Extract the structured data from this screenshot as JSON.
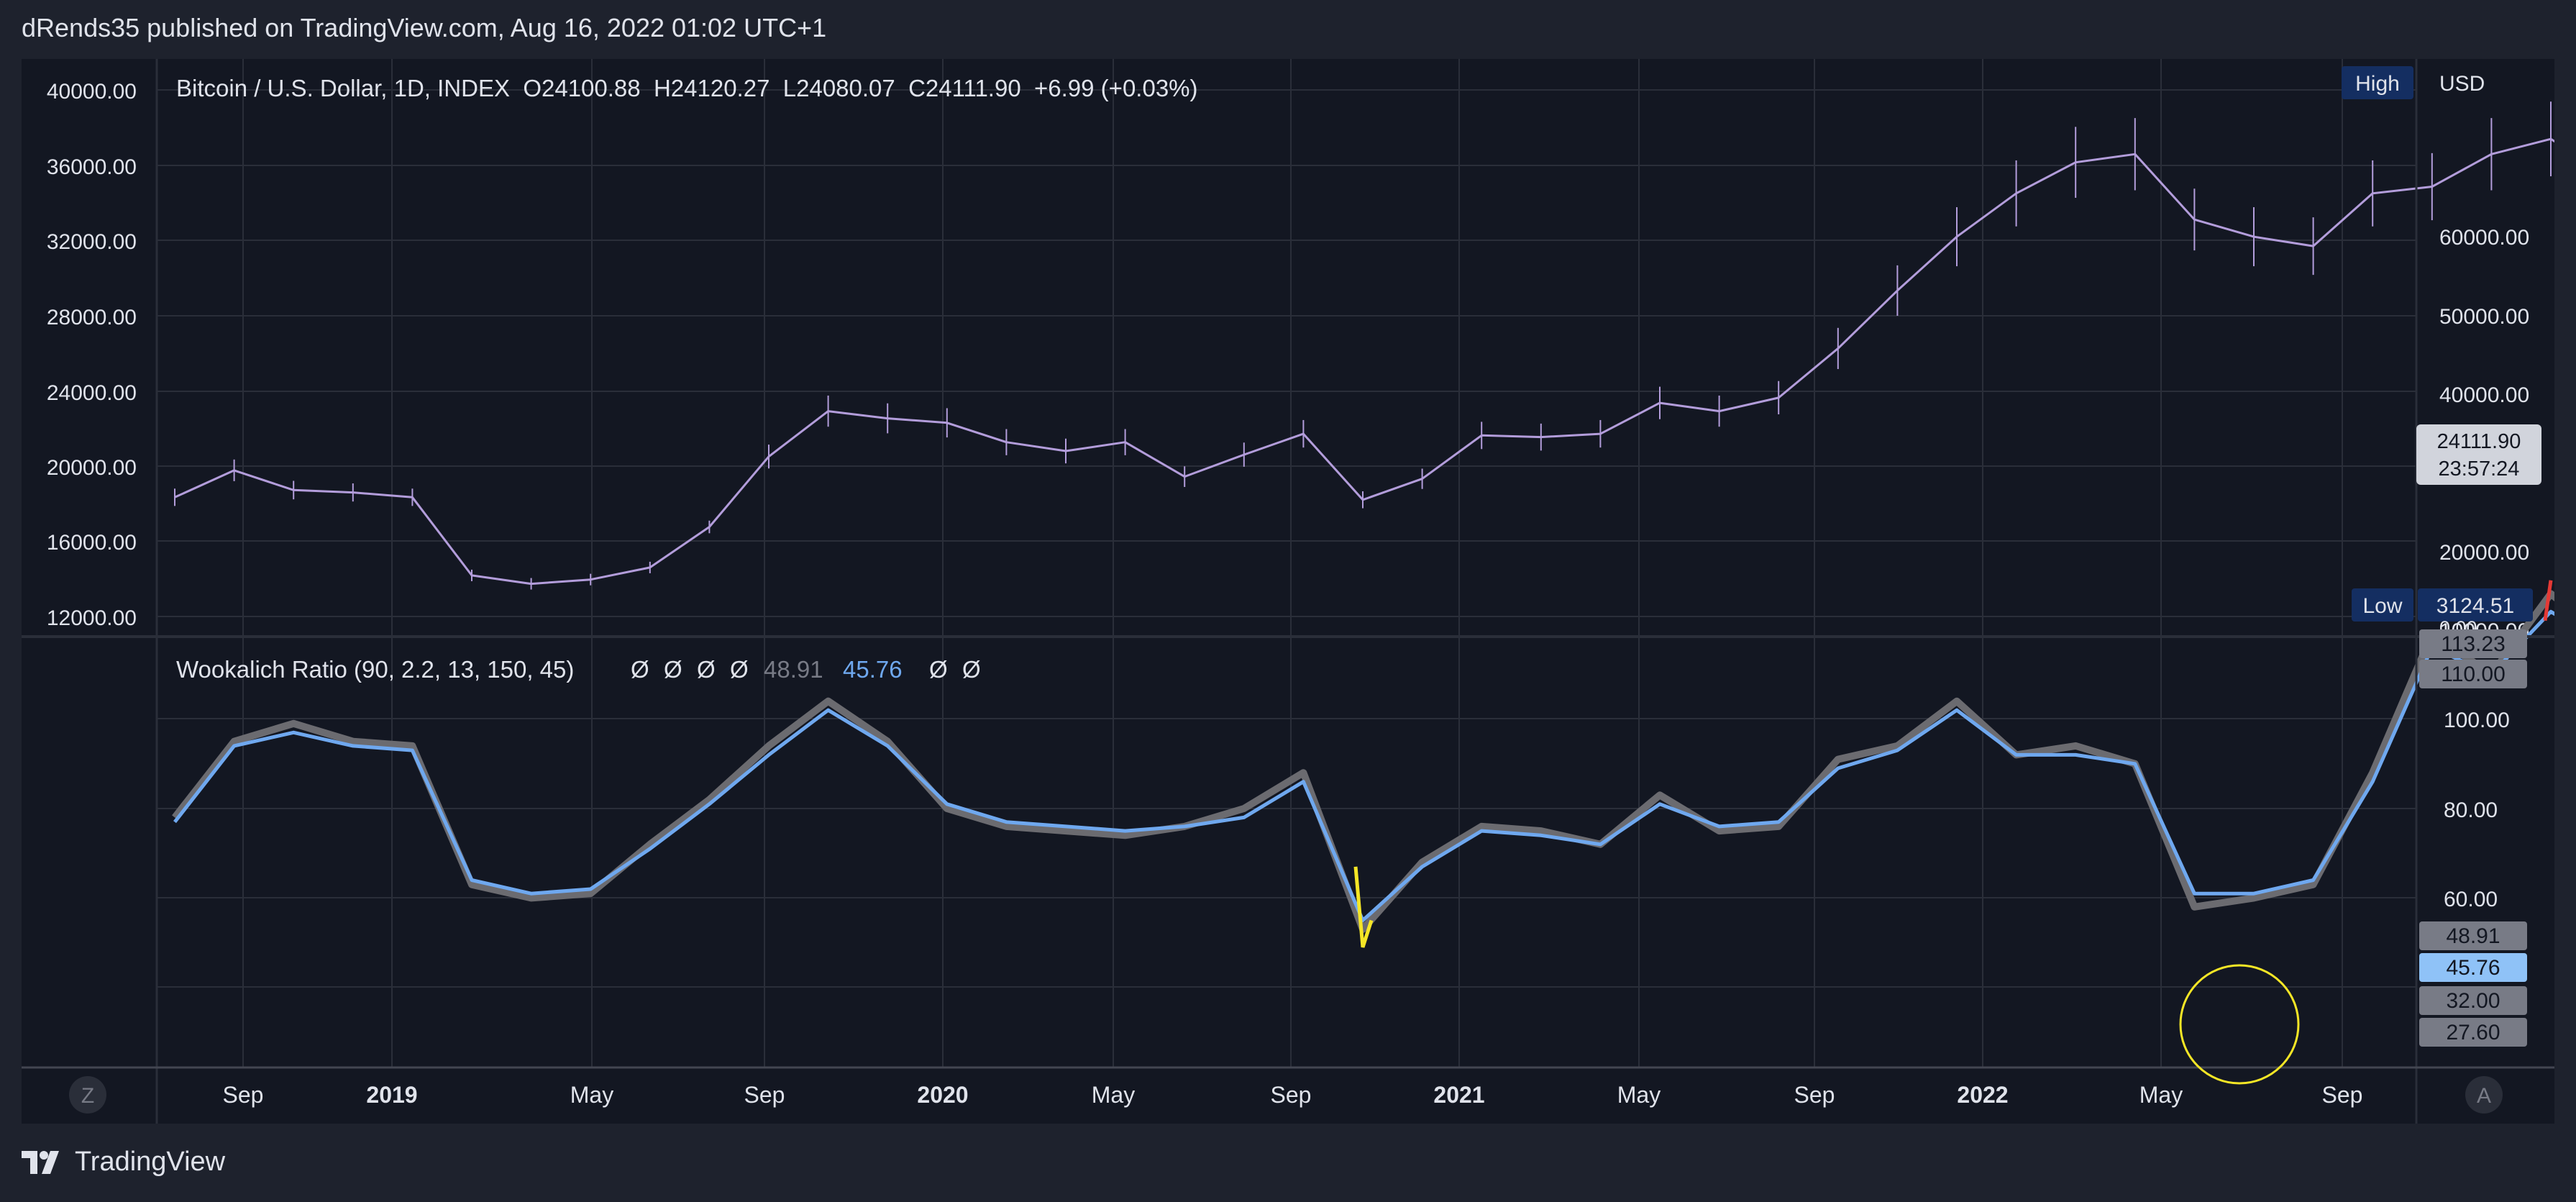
{
  "header": {
    "publisher_line": "dRends35 published on TradingView.com, Aug 16, 2022 01:02 UTC+1"
  },
  "footer": {
    "brand": "TradingView"
  },
  "colors": {
    "background": "#131722",
    "outer": "#1e222d",
    "grid": "#2a2e39",
    "price": "#b39ddb",
    "ratio_raw": "#6b6b70",
    "ratio_smooth": "#6fa8ef",
    "highlight": "#f5e626",
    "alert": "#e53935",
    "badge": "#142e61",
    "circle": "#f5e626"
  },
  "top_pane": {
    "legend": "Bitcoin / U.S. Dollar, 1D, INDEX  O24100.88  H24120.27  L24080.07  C24111.90  +6.99 (+0.03%)",
    "currency": "USD",
    "high_label": "High",
    "low_label": "Low",
    "low_value": "3124.51",
    "last_price": "24111.90",
    "countdown": "23:57:24",
    "zero_label": "0.00",
    "left_axis_labels": [
      "40000.00",
      "36000.00",
      "32000.00",
      "28000.00",
      "24000.00",
      "20000.00",
      "16000.00",
      "12000.00"
    ],
    "right_axis_labels": [
      "60000.00",
      "50000.00",
      "40000.00",
      "30000.00",
      "20000.00",
      "10000.00"
    ]
  },
  "bottom_pane": {
    "legend_title": "Wookalich Ratio (90, 2.2, 13, 150, 45)",
    "legend_symbols": [
      "Ø",
      "Ø",
      "Ø",
      "Ø"
    ],
    "legend_value_raw": "48.91",
    "legend_value_smooth": "45.76",
    "legend_symbols_after": [
      "Ø",
      "Ø"
    ],
    "axis_labels": [
      "100.00",
      "80.00",
      "60.00"
    ],
    "badges": [
      {
        "label": "113.23",
        "kind": "gray"
      },
      {
        "label": "110.00",
        "kind": "gray"
      },
      {
        "label": "48.91",
        "kind": "gray"
      },
      {
        "label": "45.76",
        "kind": "blue"
      },
      {
        "label": "32.00",
        "kind": "gray"
      },
      {
        "label": "27.60",
        "kind": "gray"
      }
    ]
  },
  "time_axis": {
    "labels": [
      "Sep",
      "2019",
      "May",
      "Sep",
      "2020",
      "May",
      "Sep",
      "2021",
      "May",
      "Sep",
      "2022",
      "May",
      "Sep"
    ],
    "bold_labels": [
      "2019",
      "2020",
      "2021",
      "2022"
    ],
    "left_button": "Z",
    "right_button": "A"
  },
  "chart_data": [
    {
      "type": "line",
      "title": "Bitcoin / U.S. Dollar, 1D, INDEX",
      "log_scale": true,
      "grid": true,
      "x": [
        "2018-07",
        "2018-08",
        "2018-09",
        "2018-10",
        "2018-11",
        "2018-12",
        "2019-01",
        "2019-02",
        "2019-03",
        "2019-04",
        "2019-05",
        "2019-06",
        "2019-07",
        "2019-08",
        "2019-09",
        "2019-10",
        "2019-11",
        "2019-12",
        "2020-01",
        "2020-02",
        "2020-03",
        "2020-04",
        "2020-05",
        "2020-06",
        "2020-07",
        "2020-08",
        "2020-09",
        "2020-10",
        "2020-11",
        "2020-12",
        "2021-01",
        "2021-02",
        "2021-03",
        "2021-04",
        "2021-05",
        "2021-06",
        "2021-07",
        "2021-08",
        "2021-09",
        "2021-10",
        "2021-11",
        "2021-12",
        "2022-01",
        "2022-02",
        "2022-03",
        "2022-04",
        "2022-05",
        "2022-06",
        "2022-07",
        "2022-08"
      ],
      "series": [
        {
          "name": "",
          "values": [
            6300,
            7500,
            6600,
            6500,
            6300,
            3800,
            3600,
            3700,
            4000,
            5200,
            8200,
            11000,
            10500,
            10200,
            9000,
            8500,
            9000,
            7200,
            8300,
            9500,
            6200,
            7100,
            9400,
            9300,
            9500,
            11600,
            11000,
            12000,
            16500,
            24000,
            34000,
            45000,
            55000,
            58000,
            38000,
            34000,
            32000,
            45000,
            47000,
            58000,
            64000,
            50000,
            40000,
            40000,
            43000,
            44000,
            31000,
            20000,
            21000,
            24000
          ]
        }
      ],
      "right_axis_range": [
        3124.51,
        69000
      ]
    },
    {
      "type": "line",
      "title": "Wookalich Ratio (90, 2.2, 13, 150, 45)",
      "grid": true,
      "x": [
        "2018-07",
        "2018-08",
        "2018-09",
        "2018-10",
        "2018-11",
        "2018-12",
        "2019-01",
        "2019-02",
        "2019-03",
        "2019-04",
        "2019-05",
        "2019-06",
        "2019-07",
        "2019-08",
        "2019-09",
        "2019-10",
        "2019-11",
        "2019-12",
        "2020-01",
        "2020-02",
        "2020-03",
        "2020-04",
        "2020-05",
        "2020-06",
        "2020-07",
        "2020-08",
        "2020-09",
        "2020-10",
        "2020-11",
        "2020-12",
        "2021-01",
        "2021-02",
        "2021-03",
        "2021-04",
        "2021-05",
        "2021-06",
        "2021-07",
        "2021-08",
        "2021-09",
        "2021-10",
        "2021-11",
        "2021-12",
        "2022-01",
        "2022-02",
        "2022-03",
        "2022-04",
        "2022-05",
        "2022-06",
        "2022-07",
        "2022-08"
      ],
      "series": [
        {
          "name": "",
          "values": [
            58,
            75,
            79,
            75,
            74,
            43,
            40,
            41,
            52,
            62,
            74,
            84,
            75,
            60,
            56,
            55,
            54,
            56,
            60,
            68,
            33,
            48,
            56,
            55,
            52,
            63,
            55,
            56,
            71,
            74,
            84,
            72,
            74,
            70,
            38,
            40,
            43,
            68,
            99,
            90,
            108,
            97,
            68,
            58,
            63,
            71,
            76,
            38,
            41,
            49
          ]
        },
        {
          "name": "",
          "values": [
            57,
            74,
            77,
            74,
            73,
            44,
            41,
            42,
            51,
            61,
            72,
            82,
            74,
            61,
            57,
            56,
            55,
            56,
            58,
            66,
            35,
            47,
            55,
            54,
            52,
            61,
            56,
            57,
            69,
            73,
            82,
            72,
            72,
            70,
            41,
            41,
            44,
            66,
            96,
            90,
            104,
            96,
            68,
            58,
            62,
            70,
            74,
            39,
            40,
            46
          ]
        }
      ],
      "ylim": [
        27.6,
        113.23
      ]
    }
  ]
}
